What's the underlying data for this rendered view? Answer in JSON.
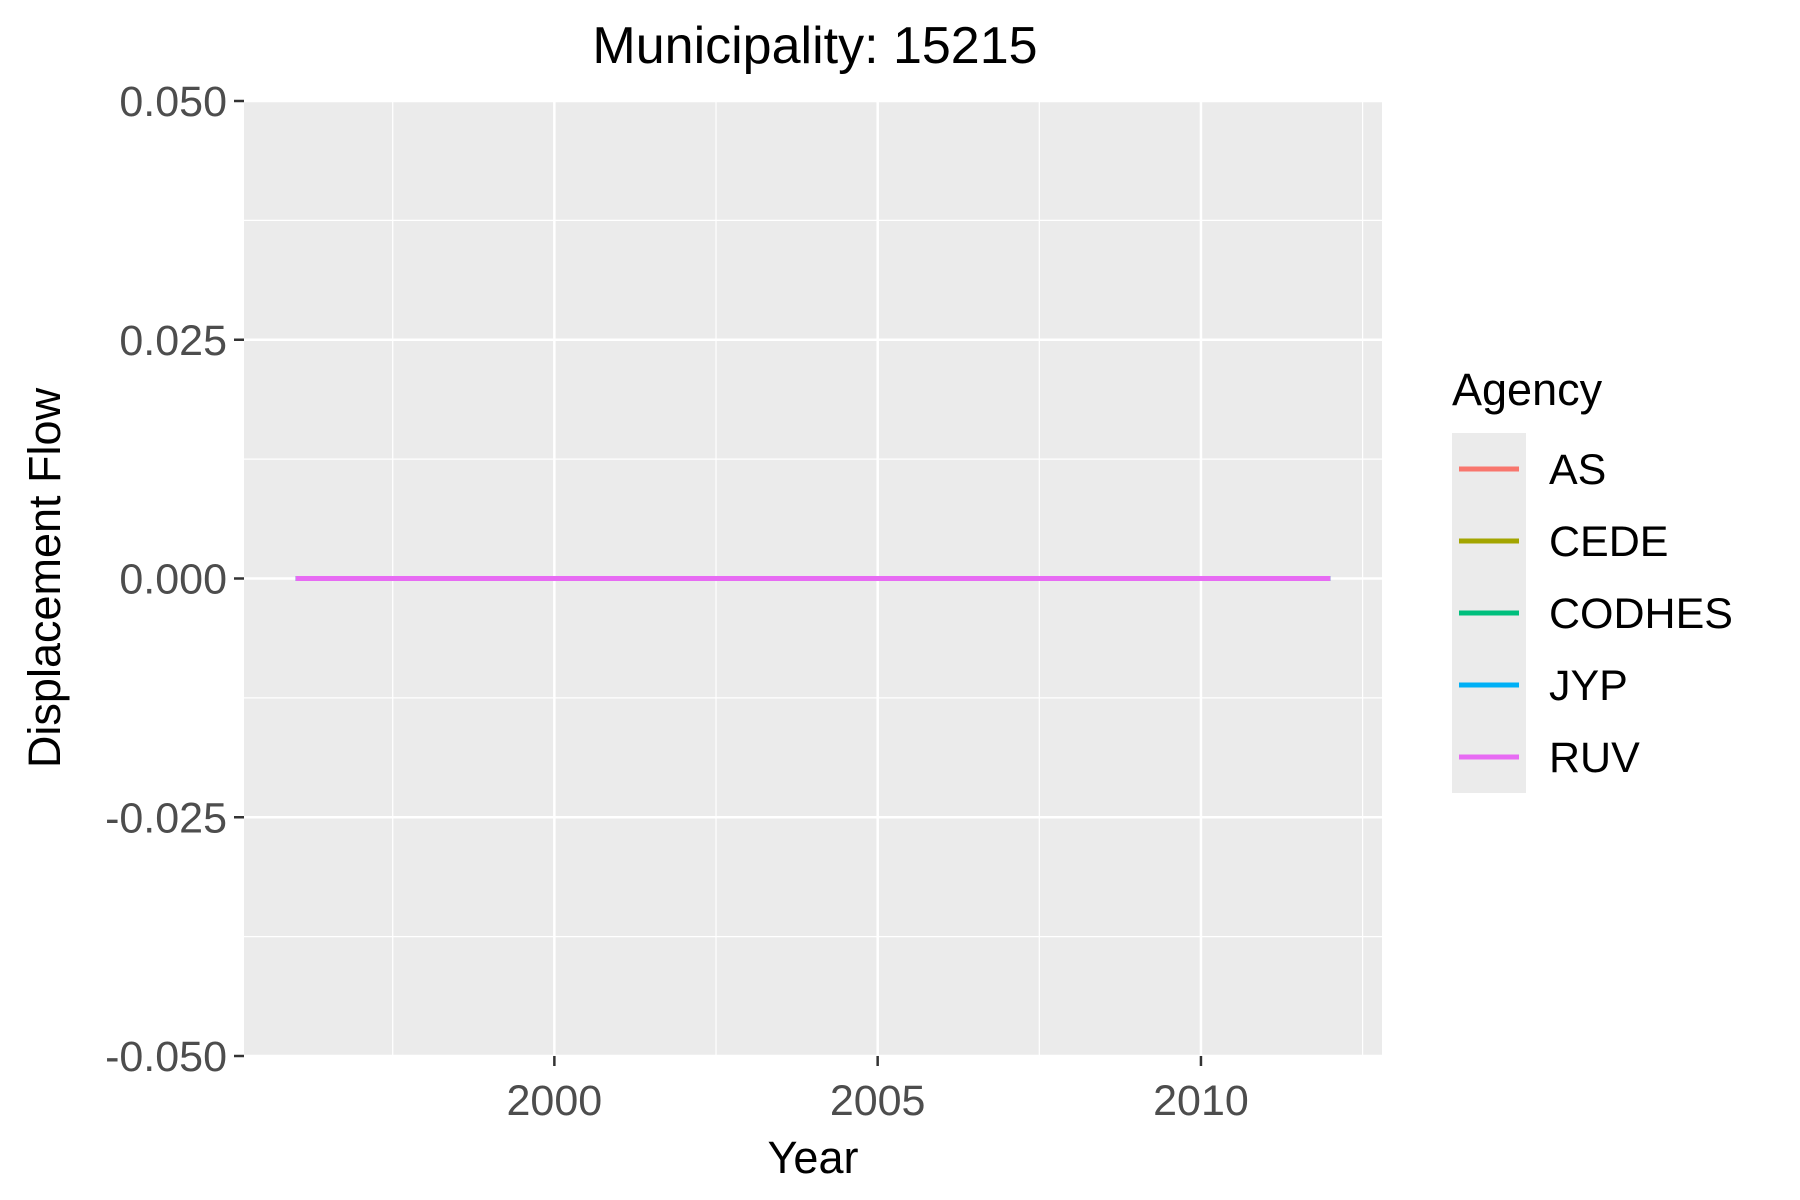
{
  "chart_data": {
    "type": "line",
    "title": "Municipality: 15215",
    "xlabel": "Year",
    "ylabel": "Displacement Flow",
    "x": [
      1996,
      1997,
      1998,
      1999,
      2000,
      2001,
      2002,
      2003,
      2004,
      2005,
      2006,
      2007,
      2008,
      2009,
      2010,
      2011,
      2012
    ],
    "xlim": [
      1995.2,
      2012.8
    ],
    "ylim": [
      -0.05,
      0.05
    ],
    "x_ticks": [
      2000,
      2005,
      2010
    ],
    "x_tick_labels": [
      "2000",
      "2005",
      "2010"
    ],
    "y_ticks": [
      -0.05,
      -0.025,
      0,
      0.025,
      0.05
    ],
    "y_tick_labels": [
      "-0.050",
      "-0.025",
      "0.000",
      "0.025",
      "0.050"
    ],
    "grid": true,
    "panel_background": "#ebebeb",
    "legend": {
      "title": "Agency",
      "placement": "right"
    },
    "series": [
      {
        "name": "AS",
        "color": "#F8766D",
        "values": [
          0,
          0,
          0,
          0,
          0,
          0,
          0,
          0,
          0,
          0,
          0,
          0,
          0,
          0,
          0,
          0,
          0
        ]
      },
      {
        "name": "CEDE",
        "color": "#A3A500",
        "values": [
          0,
          0,
          0,
          0,
          0,
          0,
          0,
          0,
          0,
          0,
          0,
          0,
          0,
          0,
          0,
          0,
          0
        ]
      },
      {
        "name": "CODHES",
        "color": "#00BF7D",
        "values": [
          0,
          0,
          0,
          0,
          0,
          0,
          0,
          0,
          0,
          0,
          0,
          0,
          0,
          0,
          0,
          0,
          0
        ]
      },
      {
        "name": "JYP",
        "color": "#00B0F6",
        "values": [
          0,
          0,
          0,
          0,
          0,
          0,
          0,
          0,
          0,
          0,
          0,
          0,
          0,
          0,
          0,
          0,
          0
        ]
      },
      {
        "name": "RUV",
        "color": "#E76BF3",
        "values": [
          0,
          0,
          0,
          0,
          0,
          0,
          0,
          0,
          0,
          0,
          0,
          0,
          0,
          0,
          0,
          0,
          0
        ]
      }
    ]
  }
}
